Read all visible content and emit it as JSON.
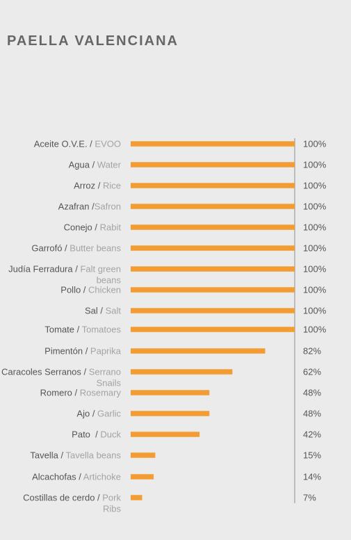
{
  "page_title": "PAELLA VALENCIANA",
  "colors": {
    "bar": "#f39c33",
    "axis": "#8c8c8c",
    "label_es": "#555555",
    "label_en": "#a3a3a3"
  },
  "chart_data": {
    "type": "bar",
    "orientation": "horizontal",
    "title": "PAELLA VALENCIANA",
    "xlim": [
      0,
      100
    ],
    "unit": "%",
    "grid": false,
    "categories": [
      {
        "es": "Aceite O.V.E.",
        "sep": " / ",
        "en": [
          "EVOO"
        ]
      },
      {
        "es": "Agua",
        "sep": " / ",
        "en": [
          "Water"
        ]
      },
      {
        "es": "Arroz",
        "sep": " / ",
        "en": [
          "Rice"
        ]
      },
      {
        "es": "Azafran",
        "sep": " /",
        "en": [
          "Safron"
        ]
      },
      {
        "es": "Conejo",
        "sep": " / ",
        "en": [
          "Rabit"
        ]
      },
      {
        "es": "Garrofó",
        "sep": " / ",
        "en": [
          "Butter beans"
        ]
      },
      {
        "es": "Judía Ferradura",
        "sep": " / ",
        "en": [
          "Falt green",
          "beans"
        ]
      },
      {
        "es": "Pollo",
        "sep": " / ",
        "en": [
          "Chicken"
        ]
      },
      {
        "es": "Sal",
        "sep": " / ",
        "en": [
          "Salt"
        ]
      },
      {
        "es": "Tomate",
        "sep": " / ",
        "en": [
          "Tomatoes"
        ]
      },
      {
        "es": "Pimentón",
        "sep": " / ",
        "en": [
          "Paprika"
        ]
      },
      {
        "es": "Caracoles Serranos",
        "sep": " / ",
        "en": [
          "Serrano",
          "Snails"
        ]
      },
      {
        "es": "Romero",
        "sep": " / ",
        "en": [
          "Rosemary"
        ]
      },
      {
        "es": "Ajo",
        "sep": " / ",
        "en": [
          "Garlic"
        ]
      },
      {
        "es": "Pato",
        "sep": "  / ",
        "en": [
          "Duck"
        ]
      },
      {
        "es": "Tavella",
        "sep": " / ",
        "en": [
          "Tavella beans"
        ]
      },
      {
        "es": "Alcachofas",
        "sep": " / ",
        "en": [
          "Artichoke"
        ]
      },
      {
        "es": "Costillas de cerdo",
        "sep": " / ",
        "en": [
          "Pork",
          "Ribs"
        ]
      }
    ],
    "values": [
      100,
      100,
      100,
      100,
      100,
      100,
      100,
      100,
      100,
      100,
      82,
      62,
      48,
      48,
      42,
      15,
      14,
      7
    ],
    "value_labels": [
      "100%",
      "100%",
      "100%",
      "100%",
      "100%",
      "100%",
      "100%",
      "100%",
      "100%",
      "100%",
      "82%",
      "62%",
      "48%",
      "48%",
      "42%",
      "15%",
      "14%",
      "7%"
    ]
  }
}
